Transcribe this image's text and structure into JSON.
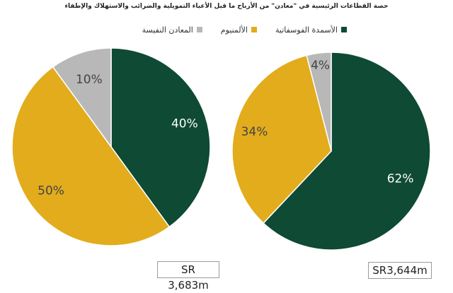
{
  "header": {
    "title": "حصة القطاعات الرئيسية في \"معادن\" من الأرباح ما قبل الأعباء التمويلية والضرائب والاستهلاك والإطفاء"
  },
  "colors": {
    "phosphate": "#0e4a34",
    "aluminium": "#e2ac1c",
    "precious": "#b8b8b8"
  },
  "chart_data": [
    {
      "type": "pie",
      "categories": [
        "الأسمدة الفوسفاتية",
        "الألمنيوم",
        "المعادن النفيسة"
      ],
      "values": [
        40,
        50,
        10
      ],
      "labels": [
        "40%",
        "50%",
        "10%"
      ],
      "total": "SR 3,683m"
    },
    {
      "type": "pie",
      "categories": [
        "الأسمدة الفوسفاتية",
        "الألمنيوم",
        "المعادن النفيسة"
      ],
      "values": [
        62,
        34,
        4
      ],
      "labels": [
        "62%",
        "34%",
        "4%"
      ],
      "total": "SR3,644m"
    }
  ],
  "legend": [
    {
      "label": "الأسمدة الفوسفاتية",
      "color_key": "phosphate"
    },
    {
      "label": "الألمنيوم",
      "color_key": "aluminium"
    },
    {
      "label": "المعادن النفيسة",
      "color_key": "precious"
    }
  ]
}
